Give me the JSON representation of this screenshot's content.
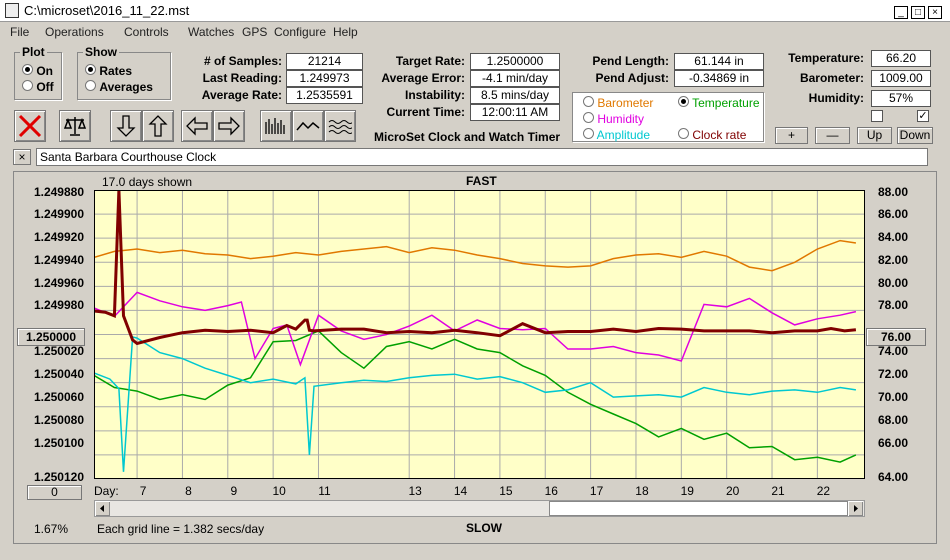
{
  "window": {
    "title": "C:\\microset\\2016_11_22.mst",
    "controls": [
      "_",
      "□",
      "×"
    ]
  },
  "menu": [
    "File",
    "Operations",
    "Controls",
    "Watches",
    "GPS",
    "Configure",
    "Help"
  ],
  "plot_group": {
    "title": "Plot",
    "options": [
      "On",
      "Off"
    ],
    "selected": "On"
  },
  "show_group": {
    "title": "Show",
    "options": [
      "Rates",
      "Averages"
    ],
    "selected": "Rates"
  },
  "stats1": [
    {
      "label": "# of Samples:",
      "value": "21214"
    },
    {
      "label": "Last Reading:",
      "value": "1.249973"
    },
    {
      "label": "Average Rate:",
      "value": "1.2535591"
    }
  ],
  "stats2": [
    {
      "label": "Target Rate:",
      "value": "1.2500000"
    },
    {
      "label": "Average Error:",
      "value": "-4.1 min/day"
    },
    {
      "label": "Instability:",
      "value": "8.5 mins/day"
    },
    {
      "label": "Current Time:",
      "value": "12:00:11 AM"
    }
  ],
  "stats3": [
    {
      "label": "Pend Length:",
      "value": "61.144 in"
    },
    {
      "label": "Pend Adjust:",
      "value": "-0.34869 in"
    }
  ],
  "stats4": [
    {
      "label": "Temperature:",
      "value": "66.20"
    },
    {
      "label": "Barometer:",
      "value": "1009.00"
    },
    {
      "label": "Humidity:",
      "value": "57%"
    }
  ],
  "app_name": "MicroSet Clock and Watch Timer",
  "right_axis_select": {
    "options": [
      {
        "label": "Barometer",
        "color": "#e07800",
        "selected": false
      },
      {
        "label": "Temperature",
        "color": "#00a000",
        "selected": true
      },
      {
        "label": "Humidity",
        "color": "#e000e0",
        "selected": false
      },
      {
        "label": "Amplitude",
        "color": "#00c8d0",
        "selected": false
      },
      {
        "label": "Clock rate",
        "color": "#800000",
        "selected": false
      }
    ]
  },
  "adjust_buttons": [
    "+",
    "—",
    "Up",
    "Down"
  ],
  "checkboxes": [
    "",
    "✓"
  ],
  "close_x": "×",
  "clock_name": "Santa Barbara Courthouse Clock",
  "chart": {
    "days_shown": "17.0 days shown",
    "top_label": "FAST",
    "bottom_label": "SLOW",
    "day_label": "Day:",
    "center_left": "1.250000",
    "center_right": "76.00",
    "offset_button": "0",
    "zoom_percent": "1.67%",
    "grid_note": "Each grid line = 1.382 secs/day"
  },
  "chart_data": {
    "type": "line",
    "x_ticks": [
      7,
      8,
      9,
      10,
      11,
      13,
      14,
      15,
      16,
      17,
      18,
      19,
      20,
      21,
      22
    ],
    "x_tick_labels": [
      "7",
      "8",
      "9",
      "10",
      "11",
      "13",
      "14",
      "15",
      "16",
      "17",
      "18",
      "19",
      "20",
      "21",
      "22"
    ],
    "xlim": [
      6.05,
      23.05
    ],
    "y_left_ticks": [
      "1.249880",
      "1.249900",
      "1.249920",
      "1.249940",
      "1.249960",
      "1.249980",
      "1.250020",
      "1.250040",
      "1.250060",
      "1.250080",
      "1.250100",
      "1.250120"
    ],
    "ylim_left": [
      1.24988,
      1.25012
    ],
    "y_right_ticks": [
      "88.00",
      "86.00",
      "84.00",
      "82.00",
      "80.00",
      "78.00",
      "74.00",
      "72.00",
      "70.00",
      "68.00",
      "66.00",
      "64.00"
    ],
    "ylim_right": [
      64,
      88
    ],
    "series": [
      {
        "name": "Barometer",
        "color": "#e07800",
        "x": [
          6.05,
          6.5,
          7,
          7.5,
          8,
          8.5,
          9,
          9.5,
          10,
          10.5,
          11,
          11.5,
          12,
          12.5,
          13,
          13.5,
          14,
          14.5,
          15,
          15.5,
          16,
          16.5,
          17,
          17.5,
          18,
          18.5,
          19,
          19.5,
          20,
          20.5,
          21,
          21.5,
          22,
          22.5,
          22.85
        ],
        "y": [
          82.4,
          82.9,
          83.1,
          82.8,
          83,
          82.7,
          82.6,
          82.3,
          82.5,
          82.8,
          82.6,
          82.9,
          83.1,
          83.3,
          82.8,
          83.2,
          83.0,
          82.6,
          82.3,
          81.9,
          81.7,
          81.6,
          81.7,
          82.3,
          82.6,
          82.7,
          82.4,
          82.9,
          82.5,
          81.6,
          81.3,
          82.0,
          83.1,
          83.8,
          83.6
        ]
      },
      {
        "name": "Temperature",
        "color": "#00a000",
        "x": [
          6.05,
          6.5,
          7,
          7.5,
          8,
          8.5,
          9,
          9.5,
          10,
          10.5,
          11,
          11.5,
          12,
          12.5,
          13,
          13.5,
          14,
          14.5,
          15,
          15.5,
          16,
          16.5,
          17,
          17.5,
          18,
          18.5,
          19,
          19.5,
          20,
          20.5,
          21,
          21.5,
          22,
          22.5,
          22.85
        ],
        "y": [
          72.6,
          71.6,
          71.3,
          70.6,
          71.0,
          70.6,
          71.8,
          72.4,
          75.4,
          75.5,
          76.3,
          74.5,
          73.2,
          75.0,
          75.4,
          74.8,
          75.6,
          74.8,
          74.5,
          73.4,
          72.6,
          71.2,
          70.2,
          69.4,
          68.6,
          67.5,
          68.2,
          67.3,
          67.8,
          66.6,
          66.7,
          65.6,
          65.8,
          65.4,
          66.0
        ]
      },
      {
        "name": "Humidity",
        "color": "#e000e0",
        "x": [
          6.05,
          6.5,
          7,
          7.5,
          8,
          8.5,
          9,
          9.3,
          9.6,
          10,
          10.3,
          10.6,
          11,
          11.5,
          12,
          12.5,
          13,
          13.5,
          14,
          14.5,
          15,
          15.5,
          16,
          16.5,
          17,
          17.5,
          18,
          18.5,
          19,
          19.5,
          20,
          20.5,
          21,
          21.5,
          22,
          22.5,
          22.85
        ],
        "y": [
          78.2,
          77.5,
          79.5,
          78.8,
          78.3,
          78.0,
          78.4,
          78.7,
          74.0,
          76.5,
          76.8,
          73.5,
          77.6,
          76.3,
          75.6,
          76.0,
          76.7,
          77.6,
          76.3,
          77.2,
          76.5,
          76.4,
          76.5,
          74.8,
          74.8,
          75.0,
          74.5,
          74.3,
          73.8,
          78.5,
          78.3,
          79.0,
          77.8,
          76.8,
          77.3,
          77.6,
          77.9
        ]
      },
      {
        "name": "Amplitude",
        "color": "#00c8d0",
        "x": [
          6.05,
          6.4,
          6.6,
          6.7,
          6.9,
          7,
          7.5,
          8,
          8.5,
          9,
          9.5,
          10,
          10.5,
          10.7,
          10.8,
          10.9,
          11.5,
          12,
          12.5,
          13,
          13.5,
          14,
          14.5,
          15,
          15.5,
          16,
          16.5,
          17,
          17.5,
          18,
          18.5,
          19,
          19.5,
          20,
          20.5,
          21,
          21.5,
          22,
          22.5,
          22.85
        ],
        "y": [
          72.8,
          72.3,
          71.5,
          64.6,
          75.8,
          75.7,
          74.5,
          74.0,
          73.2,
          72.6,
          72.0,
          72.3,
          71.9,
          72.4,
          66.0,
          71.7,
          72.0,
          72.2,
          72.1,
          72.4,
          72.6,
          72.7,
          72.3,
          72.5,
          72.0,
          71.2,
          71.4,
          72.0,
          70.8,
          70.9,
          71.0,
          70.8,
          71.6,
          71.2,
          71.0,
          71.3,
          71.4,
          71.2,
          71.6,
          71.4
        ]
      },
      {
        "name": "Clock rate",
        "color": "#800000",
        "x": [
          6.05,
          6.3,
          6.5,
          6.6,
          6.7,
          6.9,
          7,
          7.5,
          8,
          8.5,
          9,
          9.5,
          10,
          10.3,
          10.5,
          10.7,
          10.75,
          10.8,
          10.9,
          11.5,
          12,
          12.5,
          13,
          13.5,
          14,
          14.5,
          15,
          15.5,
          16,
          16.5,
          17,
          17.5,
          18,
          18.5,
          19,
          19.5,
          20,
          20.5,
          21,
          21.5,
          22,
          22.3,
          22.6,
          22.85
        ],
        "y": [
          1.2499805,
          1.2499815,
          1.2499845,
          1.24988,
          1.2499845,
          1.2500045,
          1.2500075,
          1.2500025,
          1.2499985,
          1.2499965,
          1.2499975,
          1.2499965,
          1.2499985,
          1.2499925,
          1.2499955,
          1.249988,
          1.249988,
          1.2499965,
          1.249997,
          1.2499955,
          1.2499955,
          1.2499985,
          1.2499975,
          1.2499985,
          1.2499965,
          1.2499985,
          1.250001,
          1.249991,
          1.2499985,
          1.2499975,
          1.2499975,
          1.2499955,
          1.2499975,
          1.249995,
          1.2499955,
          1.249997,
          1.249997,
          1.249997,
          1.2499985,
          1.249997,
          1.249997,
          1.249995,
          1.249997,
          1.249996
        ]
      }
    ]
  }
}
